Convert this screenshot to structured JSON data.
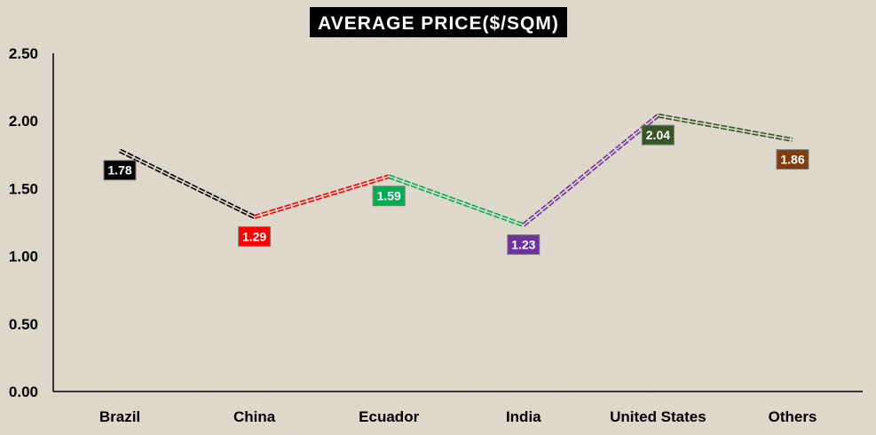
{
  "chart_data": {
    "type": "line",
    "title": "AVERAGE PRICE($/SQM)",
    "categories": [
      "Brazil",
      "China",
      "Ecuador",
      "India",
      "United States",
      "Others"
    ],
    "values": [
      1.78,
      1.29,
      1.59,
      1.23,
      2.04,
      1.86
    ],
    "data_labels": [
      "1.78",
      "1.29",
      "1.59",
      "1.23",
      "2.04",
      "1.86"
    ],
    "segment_colors": [
      "#000000",
      "#ff0000",
      "#00b050",
      "#7030a0",
      "#375623",
      "#375623"
    ],
    "label_colors": [
      "#000000",
      "#ff0000",
      "#00b050",
      "#7030a0",
      "#375623",
      "#843c0c"
    ],
    "y_ticks": [
      "0.00",
      "0.50",
      "1.00",
      "1.50",
      "2.00",
      "2.50"
    ],
    "ylim": [
      0,
      2.5
    ],
    "grid": false,
    "legend": "none",
    "line_style": "double-dashed"
  }
}
